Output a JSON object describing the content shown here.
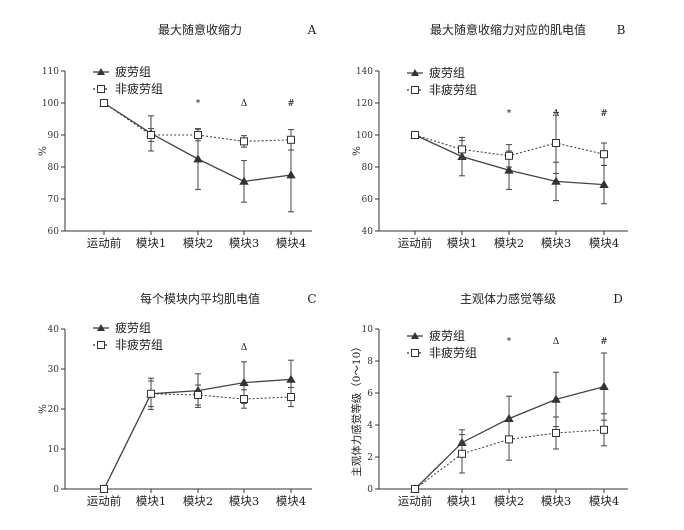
{
  "chart_data": [
    {
      "type": "line",
      "title": "最大随意收缩力",
      "panel_label": "A",
      "ylabel": "%",
      "ylim": [
        60,
        110
      ],
      "yticks": [
        "60",
        "70",
        "80",
        "90",
        "100",
        "110"
      ],
      "categories": [
        "运动前",
        "模块1",
        "模块2",
        "模块3",
        "模块4"
      ],
      "series": [
        {
          "name": "疲劳组",
          "marker": "triangle",
          "line": "solid",
          "color": "#444444",
          "values": [
            100,
            90.5,
            82.5,
            75.5,
            77.5
          ],
          "error": [
            0,
            5.5,
            9.5,
            6.5,
            11.5
          ]
        },
        {
          "name": "非疲劳组",
          "marker": "square",
          "line": "dotted",
          "color": "#444444",
          "values": [
            100,
            90,
            90,
            88,
            88.5
          ],
          "error": [
            0,
            2,
            1.8,
            1.8,
            3.2
          ]
        }
      ],
      "annotations": [
        "*",
        "Δ",
        "#"
      ],
      "legend": "top-left",
      "grid": false
    },
    {
      "type": "line",
      "title": "最大随意收缩力对应的肌电值",
      "panel_label": "B",
      "ylabel": "%",
      "ylim": [
        40,
        140
      ],
      "yticks": [
        "40",
        "60",
        "80",
        "100",
        "120",
        "140"
      ],
      "categories": [
        "运动前",
        "模块1",
        "模块2",
        "模块3",
        "模块4"
      ],
      "series": [
        {
          "name": "疲劳组",
          "marker": "triangle",
          "line": "solid",
          "color": "#444444",
          "values": [
            100,
            86.5,
            78,
            71,
            69
          ],
          "error": [
            0,
            12,
            12,
            12,
            12
          ]
        },
        {
          "name": "非疲劳组",
          "marker": "square",
          "line": "dotted",
          "color": "#444444",
          "values": [
            100,
            91,
            87,
            95,
            88
          ],
          "error": [
            0,
            5.5,
            7,
            19,
            7
          ]
        }
      ],
      "annotations": [
        "*",
        "Δ",
        "#"
      ],
      "legend": "top-left",
      "grid": false
    },
    {
      "type": "line",
      "title": "每个模块内平均肌电值",
      "panel_label": "C",
      "ylabel": "%",
      "ylim": [
        0,
        40
      ],
      "yticks": [
        "0",
        "10",
        "20",
        "30",
        "40"
      ],
      "categories": [
        "运动前",
        "模块1",
        "模块2",
        "模块3",
        "模块4"
      ],
      "series": [
        {
          "name": "疲劳组",
          "marker": "triangle",
          "line": "solid",
          "color": "#444444",
          "values": [
            0,
            23.8,
            24.6,
            26.6,
            27.4
          ],
          "error": [
            0,
            3.9,
            4.2,
            5.2,
            4.8
          ]
        },
        {
          "name": "非疲劳组",
          "marker": "square",
          "line": "dotted",
          "color": "#444444",
          "values": [
            0,
            23.8,
            23.5,
            22.5,
            23
          ],
          "error": [
            0,
            3.2,
            2.5,
            2.3,
            2.4
          ]
        }
      ],
      "annotations": [
        "Δ"
      ],
      "legend": "top-left",
      "grid": false
    },
    {
      "type": "line",
      "title": "主观体力感觉等级",
      "panel_label": "D",
      "ylabel": "主观体力感觉等级（0～10）",
      "ylim": [
        0,
        10
      ],
      "yticks": [
        "0",
        "2",
        "4",
        "6",
        "8",
        "10"
      ],
      "categories": [
        "运动前",
        "模块1",
        "模块2",
        "模块3",
        "模块4"
      ],
      "series": [
        {
          "name": "疲劳组",
          "marker": "triangle",
          "line": "solid",
          "color": "#444444",
          "values": [
            0,
            2.9,
            4.4,
            5.6,
            6.4
          ],
          "error": [
            0,
            0.8,
            1.4,
            1.7,
            2.1
          ]
        },
        {
          "name": "非疲劳组",
          "marker": "square",
          "line": "dotted",
          "color": "#444444",
          "values": [
            0,
            2.2,
            3.1,
            3.5,
            3.7
          ],
          "error": [
            0,
            1.2,
            1.3,
            1.0,
            1.0
          ]
        }
      ],
      "annotations": [
        "*",
        "Δ",
        "#"
      ],
      "legend": "top-left",
      "grid": false
    }
  ]
}
